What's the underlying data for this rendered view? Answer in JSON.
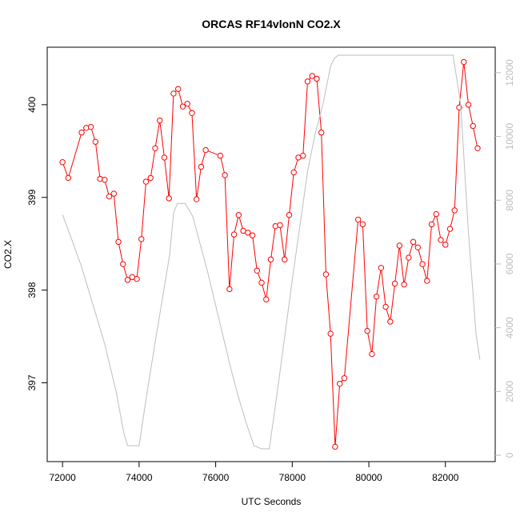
{
  "chart_data": {
    "type": "line",
    "title": "ORCAS RF14vlonN CO2.X",
    "xlabel": "UTC Seconds",
    "ylabel": "CO2.X",
    "xlim": [
      71600,
      83300
    ],
    "ylim": [
      396.15,
      400.62
    ],
    "y2lim": [
      -200,
      12800
    ],
    "x_ticks": [
      72000,
      74000,
      76000,
      78000,
      80000,
      82000
    ],
    "y_ticks": [
      397,
      398,
      399,
      400
    ],
    "y2_ticks": [
      0,
      2000,
      4000,
      6000,
      8000,
      10000,
      12000
    ],
    "grid": false,
    "colors": {
      "primary": "#ff0000",
      "secondary": "#bebebe"
    },
    "series": [
      {
        "axis": "left",
        "style": "line+points",
        "x": [
          72000,
          72150,
          72500,
          72620,
          72740,
          72860,
          72980,
          73100,
          73220,
          73340,
          73460,
          73580,
          73700,
          73820,
          73940,
          74060,
          74180,
          74300,
          74420,
          74540,
          74660,
          74780,
          74900,
          75020,
          75140,
          75260,
          75380,
          75500,
          75620,
          75740,
          76120,
          76240,
          76360,
          76480,
          76600,
          76720,
          76840,
          76960,
          77080,
          77200,
          77320,
          77440,
          77560,
          77680,
          77800,
          77920,
          78040,
          78160,
          78280,
          78400,
          78520,
          78640,
          78760,
          78880,
          79000,
          79120,
          79240,
          79360,
          79720,
          79840,
          79960,
          80080,
          80200,
          80320,
          80440,
          80560,
          80680,
          80800,
          80920,
          81040,
          81160,
          81280,
          81400,
          81520,
          81640,
          81760,
          81880,
          82000,
          82120,
          82240,
          82360,
          82480,
          82600,
          82720,
          82840
        ],
        "values": [
          399.38,
          399.21,
          399.7,
          399.75,
          399.76,
          399.6,
          399.2,
          399.19,
          399.01,
          399.04,
          398.52,
          398.28,
          398.11,
          398.14,
          398.12,
          398.55,
          399.17,
          399.21,
          399.53,
          399.83,
          399.43,
          398.99,
          400.12,
          400.17,
          399.98,
          400.01,
          399.91,
          398.98,
          399.33,
          399.51,
          399.45,
          399.24,
          398.01,
          398.6,
          398.81,
          398.64,
          398.62,
          398.59,
          398.21,
          398.08,
          397.9,
          398.33,
          398.69,
          398.7,
          398.33,
          398.81,
          399.27,
          399.43,
          399.45,
          400.25,
          400.31,
          400.28,
          399.7,
          398.17,
          397.53,
          396.31,
          396.99,
          397.05,
          398.76,
          398.71,
          397.56,
          397.31,
          397.93,
          398.24,
          397.82,
          397.66,
          398.07,
          398.48,
          398.06,
          398.35,
          398.52,
          398.46,
          398.28,
          398.1,
          398.71,
          398.82,
          398.54,
          398.49,
          398.66,
          398.86,
          399.97,
          400.46,
          400.0,
          399.77,
          399.53
        ]
      },
      {
        "axis": "right",
        "style": "line",
        "x": [
          72000,
          72200,
          72500,
          72800,
          73100,
          73400,
          73600,
          73700,
          73800,
          74000,
          74200,
          74400,
          74600,
          74800,
          74900,
          75000,
          75200,
          75400,
          75600,
          75800,
          76000,
          76200,
          76400,
          76600,
          76800,
          77000,
          77200,
          77400,
          77600,
          77800,
          78000,
          78200,
          78400,
          78600,
          78800,
          79000,
          79100,
          79200,
          79400,
          80000,
          81000,
          82000,
          82200,
          82400,
          82600,
          82800,
          82900
        ],
        "values": [
          7550,
          6900,
          5900,
          4700,
          3500,
          2000,
          700,
          300,
          300,
          300,
          1900,
          3400,
          4850,
          6300,
          7600,
          7900,
          7900,
          7500,
          6600,
          5700,
          4700,
          3700,
          2700,
          1800,
          1000,
          300,
          200,
          200,
          1900,
          3700,
          5500,
          7200,
          8900,
          10100,
          11000,
          12200,
          12450,
          12550,
          12550,
          12550,
          12550,
          12550,
          12550,
          11000,
          7000,
          3800,
          3000
        ]
      }
    ]
  }
}
